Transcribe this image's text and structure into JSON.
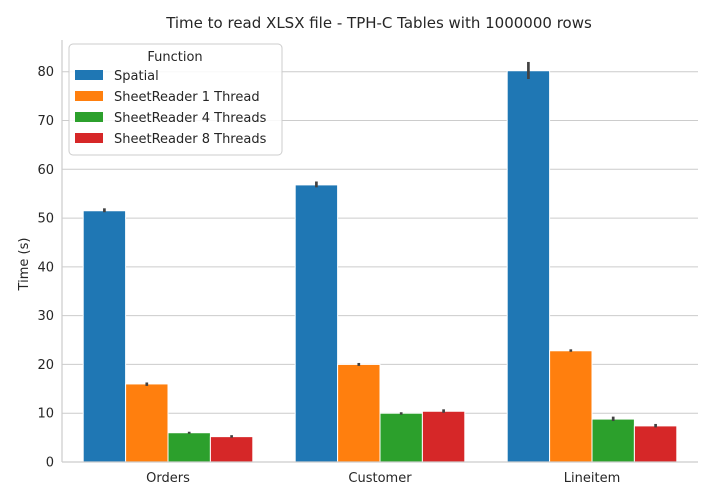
{
  "chart_data": {
    "type": "bar",
    "title": "Time to read XLSX file - TPH-C Tables with 1000000 rows",
    "xlabel": "",
    "ylabel": "Time (s)",
    "ylim": [
      0,
      86.5
    ],
    "yticks": [
      0,
      10,
      20,
      30,
      40,
      50,
      60,
      70,
      80
    ],
    "grid": "horizontal",
    "legend": {
      "title": "Function",
      "placement": "top-left"
    },
    "categories": [
      "Orders",
      "Customer",
      "Lineitem"
    ],
    "series": [
      {
        "name": "Spatial",
        "color": "#1f77b4",
        "values": [
          51.5,
          56.8,
          80.2
        ],
        "error_low": [
          51.2,
          56.3,
          78.5
        ],
        "error_high": [
          52.0,
          57.5,
          82.0
        ]
      },
      {
        "name": "SheetReader 1 Thread",
        "color": "#ff7f0e",
        "values": [
          16.0,
          20.0,
          22.8
        ],
        "error_low": [
          15.6,
          19.7,
          22.6
        ],
        "error_high": [
          16.3,
          20.3,
          23.1
        ]
      },
      {
        "name": "SheetReader 4 Threads",
        "color": "#2ca02c",
        "values": [
          6.0,
          10.0,
          8.8
        ],
        "error_low": [
          5.8,
          9.7,
          8.4
        ],
        "error_high": [
          6.2,
          10.2,
          9.3
        ]
      },
      {
        "name": "SheetReader 8 Threads",
        "color": "#d62728",
        "values": [
          5.2,
          10.4,
          7.4
        ],
        "error_low": [
          5.0,
          10.1,
          7.1
        ],
        "error_high": [
          5.5,
          10.8,
          7.8
        ]
      }
    ]
  }
}
